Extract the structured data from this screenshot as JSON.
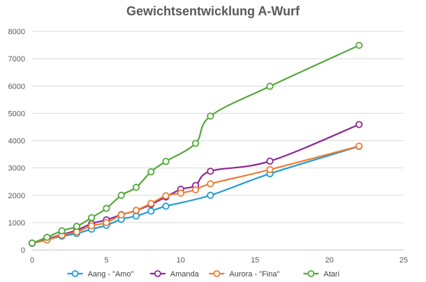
{
  "chart_data": {
    "type": "line",
    "title": "Gewichtsentwicklung A-Wurf",
    "xlabel": "",
    "ylabel": "",
    "xlim": [
      0,
      25
    ],
    "ylim": [
      0,
      8000
    ],
    "x_ticks": [
      0,
      5,
      10,
      15,
      20,
      25
    ],
    "y_ticks": [
      0,
      1000,
      2000,
      3000,
      4000,
      5000,
      6000,
      7000,
      8000
    ],
    "grid": "horizontal",
    "legend_position": "bottom",
    "series": [
      {
        "name": "Aang - \"Amo\"",
        "color": "#1f9bd6",
        "points": [
          [
            0,
            240
          ],
          [
            1,
            370
          ],
          [
            2,
            500
          ],
          [
            3,
            600
          ],
          [
            4,
            760
          ],
          [
            5,
            900
          ],
          [
            6,
            1120
          ],
          [
            7,
            1240
          ],
          [
            8,
            1420
          ],
          [
            9,
            1600
          ],
          [
            12,
            2000
          ],
          [
            16,
            2790
          ],
          [
            22,
            3790
          ]
        ]
      },
      {
        "name": "Amanda",
        "color": "#8b2893",
        "points": [
          [
            0,
            250
          ],
          [
            1,
            400
          ],
          [
            2,
            560
          ],
          [
            3,
            720
          ],
          [
            4,
            960
          ],
          [
            5,
            1100
          ],
          [
            6,
            1290
          ],
          [
            7,
            1440
          ],
          [
            8,
            1660
          ],
          [
            9,
            1940
          ],
          [
            10,
            2220
          ],
          [
            11,
            2360
          ],
          [
            12,
            2880
          ],
          [
            16,
            3250
          ],
          [
            22,
            4590
          ]
        ]
      },
      {
        "name": "Aurora - \"Fina\"",
        "color": "#ed7d31",
        "points": [
          [
            0,
            250
          ],
          [
            1,
            360
          ],
          [
            2,
            540
          ],
          [
            3,
            660
          ],
          [
            4,
            880
          ],
          [
            5,
            1000
          ],
          [
            6,
            1280
          ],
          [
            7,
            1450
          ],
          [
            8,
            1700
          ],
          [
            9,
            1980
          ],
          [
            10,
            2080
          ],
          [
            11,
            2200
          ],
          [
            12,
            2420
          ],
          [
            16,
            2940
          ],
          [
            22,
            3800
          ]
        ]
      },
      {
        "name": "Atari",
        "color": "#52a83a",
        "points": [
          [
            0,
            250
          ],
          [
            1,
            460
          ],
          [
            2,
            700
          ],
          [
            3,
            860
          ],
          [
            4,
            1180
          ],
          [
            5,
            1520
          ],
          [
            6,
            2000
          ],
          [
            7,
            2290
          ],
          [
            8,
            2860
          ],
          [
            9,
            3240
          ],
          [
            11,
            3900
          ],
          [
            12,
            4900
          ],
          [
            16,
            5990
          ],
          [
            22,
            7490
          ]
        ]
      }
    ]
  }
}
